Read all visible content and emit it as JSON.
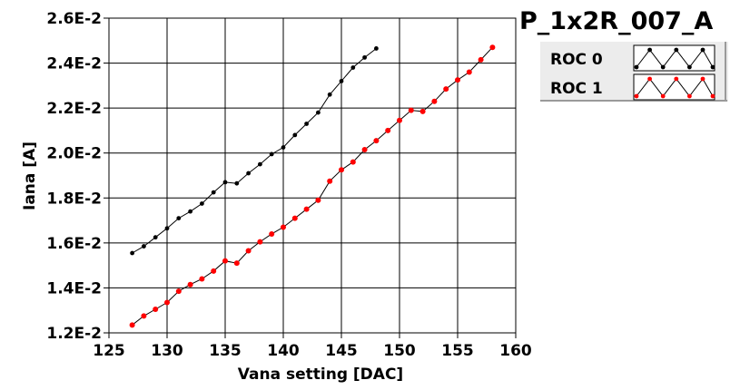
{
  "title": "P_1x2R_007_A",
  "chart_data": {
    "type": "line",
    "xlabel": "Vana setting [DAC]",
    "ylabel": "Iana [A]",
    "xlim": [
      125,
      160
    ],
    "ylim": [
      0.012,
      0.026
    ],
    "x_ticks": [
      125,
      130,
      135,
      140,
      145,
      150,
      155,
      160
    ],
    "y_ticks": [
      0.012,
      0.014,
      0.016,
      0.018,
      0.02,
      0.022,
      0.024,
      0.026
    ],
    "y_tick_labels": [
      "1.2E-2",
      "1.4E-2",
      "1.6E-2",
      "1.8E-2",
      "2.0E-2",
      "2.2E-2",
      "2.4E-2",
      "2.6E-2"
    ],
    "grid": true,
    "legend_position": "top-right",
    "series": [
      {
        "name": "ROC 0",
        "color": "#000000",
        "x": [
          127,
          128,
          129,
          130,
          131,
          132,
          133,
          134,
          135,
          136,
          137,
          138,
          139,
          140,
          141,
          142,
          143,
          144,
          145,
          146,
          147,
          148
        ],
        "y": [
          0.01555,
          0.01585,
          0.01625,
          0.01665,
          0.0171,
          0.0174,
          0.01775,
          0.01825,
          0.0187,
          0.01865,
          0.0191,
          0.0195,
          0.01995,
          0.02025,
          0.0208,
          0.0213,
          0.0218,
          0.0226,
          0.0232,
          0.0238,
          0.02425,
          0.02465
        ]
      },
      {
        "name": "ROC 1",
        "color": "#ff0000",
        "x": [
          127,
          128,
          129,
          130,
          131,
          132,
          133,
          134,
          135,
          136,
          137,
          138,
          139,
          140,
          141,
          142,
          143,
          144,
          145,
          146,
          147,
          148,
          149,
          150,
          151,
          152,
          153,
          154,
          155,
          156,
          157,
          158
        ],
        "y": [
          0.01235,
          0.01275,
          0.01305,
          0.01335,
          0.01385,
          0.01415,
          0.0144,
          0.01475,
          0.0152,
          0.0151,
          0.01565,
          0.01605,
          0.0164,
          0.0167,
          0.0171,
          0.0175,
          0.0179,
          0.01875,
          0.01925,
          0.0196,
          0.02015,
          0.02055,
          0.021,
          0.02145,
          0.0219,
          0.02185,
          0.0223,
          0.02285,
          0.02325,
          0.0236,
          0.02415,
          0.0247
        ]
      }
    ]
  }
}
